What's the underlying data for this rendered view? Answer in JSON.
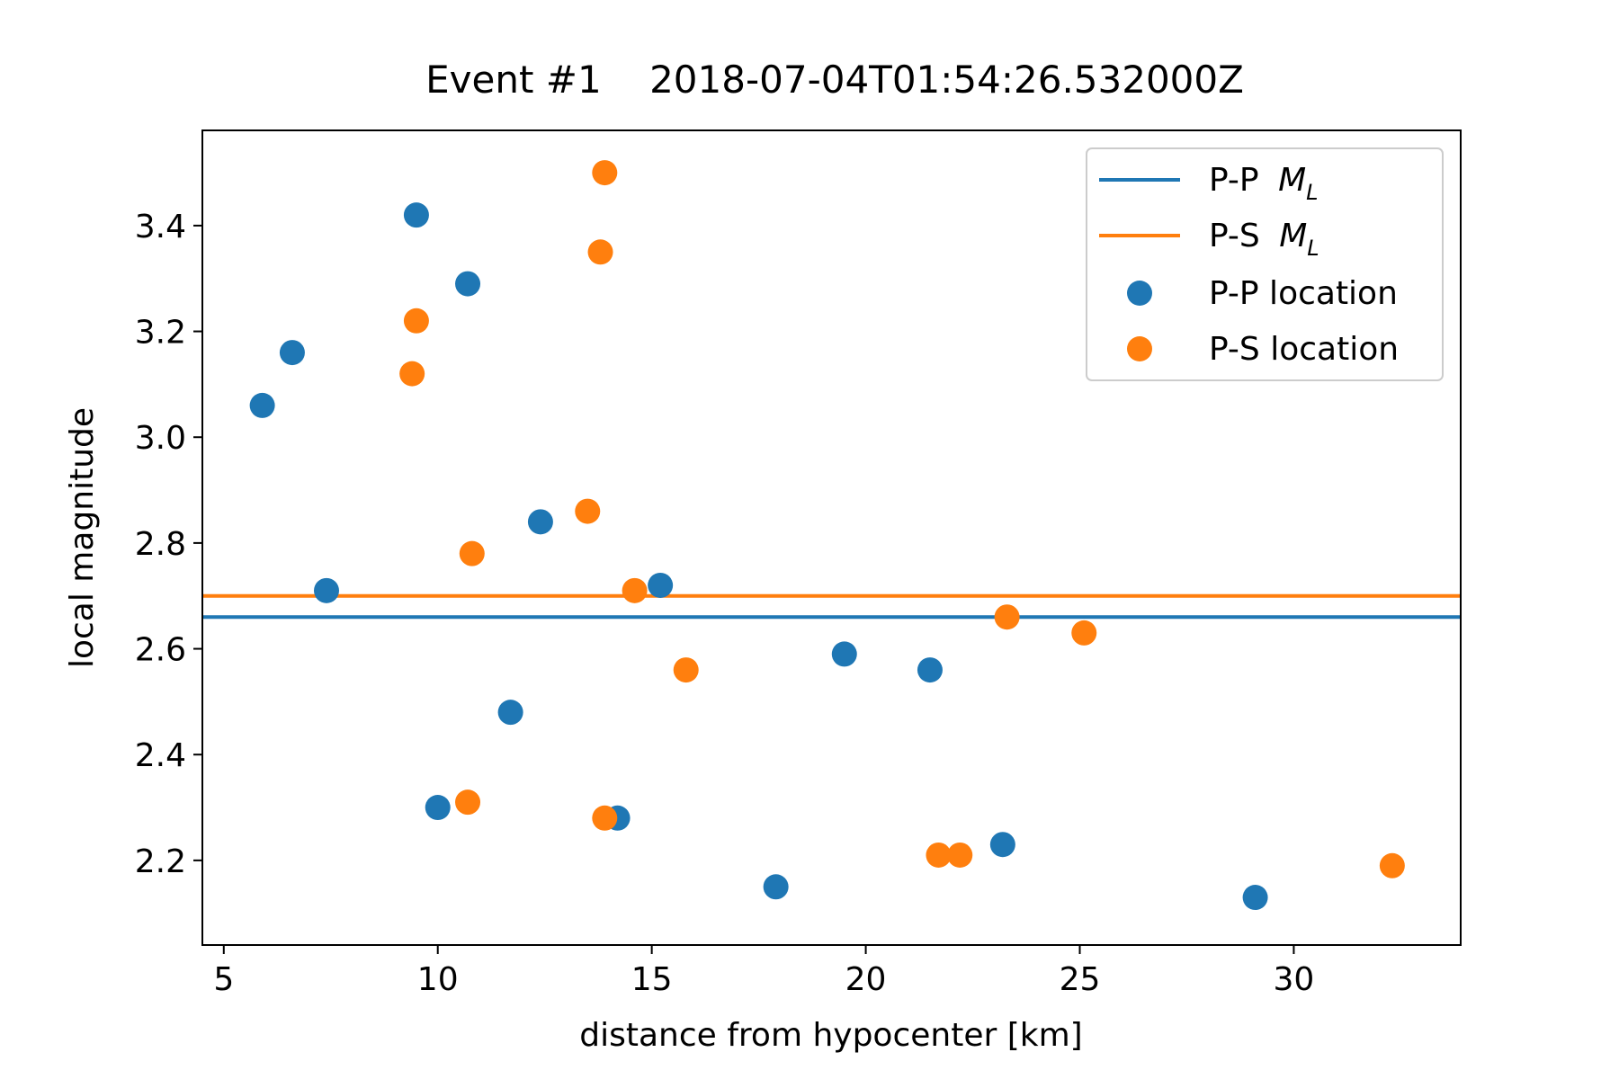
{
  "chart_data": {
    "type": "scatter",
    "title": "Event #1    2018-07-04T01:54:26.532000Z",
    "xlabel": "distance from hypocenter [km]",
    "ylabel": "local magnitude",
    "xlim": [
      4.5,
      33.9
    ],
    "ylim": [
      2.04,
      3.58
    ],
    "x_ticks": [
      5,
      10,
      15,
      20,
      25,
      30
    ],
    "y_ticks": [
      2.2,
      2.4,
      2.6,
      2.8,
      3.0,
      3.2,
      3.4
    ],
    "x_tick_labels": [
      "5",
      "10",
      "15",
      "20",
      "25",
      "30"
    ],
    "y_tick_labels": [
      "2.2",
      "2.4",
      "2.6",
      "2.8",
      "3.0",
      "3.2",
      "3.4"
    ],
    "grid": false,
    "legend_position": "top-right",
    "lines": [
      {
        "name": "P-P",
        "subscript_label": "M",
        "subscript": "L",
        "y": 2.66,
        "color": "#1f77b4"
      },
      {
        "name": "P-S",
        "subscript_label": "M",
        "subscript": "L",
        "y": 2.7,
        "color": "#ff7f0e"
      }
    ],
    "series": [
      {
        "name": "P-P location",
        "color": "#1f77b4",
        "points": [
          [
            5.9,
            3.06
          ],
          [
            6.6,
            3.16
          ],
          [
            7.4,
            2.71
          ],
          [
            9.5,
            3.42
          ],
          [
            10.0,
            2.3
          ],
          [
            10.7,
            3.29
          ],
          [
            11.7,
            2.48
          ],
          [
            12.4,
            2.84
          ],
          [
            14.2,
            2.28
          ],
          [
            15.2,
            2.72
          ],
          [
            17.9,
            2.15
          ],
          [
            19.5,
            2.59
          ],
          [
            21.5,
            2.56
          ],
          [
            23.2,
            2.23
          ],
          [
            29.1,
            2.13
          ]
        ]
      },
      {
        "name": "P-S location",
        "color": "#ff7f0e",
        "points": [
          [
            9.4,
            3.12
          ],
          [
            9.5,
            3.22
          ],
          [
            10.7,
            2.31
          ],
          [
            10.8,
            2.78
          ],
          [
            13.5,
            2.86
          ],
          [
            13.8,
            3.35
          ],
          [
            13.9,
            3.5
          ],
          [
            13.9,
            2.28
          ],
          [
            14.6,
            2.71
          ],
          [
            15.8,
            2.56
          ],
          [
            21.7,
            2.21
          ],
          [
            22.2,
            2.21
          ],
          [
            23.3,
            2.66
          ],
          [
            25.1,
            2.63
          ],
          [
            32.3,
            2.19
          ]
        ]
      }
    ]
  }
}
